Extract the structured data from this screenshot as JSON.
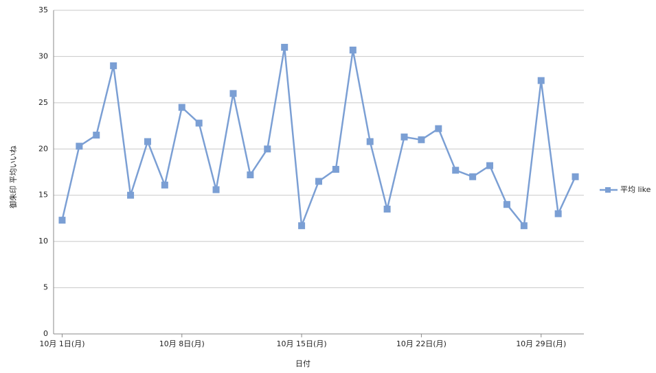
{
  "chart_data": {
    "type": "line",
    "x_label": "日付",
    "y_label": "御朱印 平均いいね",
    "categories": [
      "10月 1日(月)",
      null,
      null,
      null,
      null,
      null,
      null,
      "10月 8日(月)",
      null,
      null,
      null,
      null,
      null,
      null,
      "10月 15日(月)",
      null,
      null,
      null,
      null,
      null,
      null,
      "10月 22日(月)",
      null,
      null,
      null,
      null,
      null,
      null,
      "10月 29日(月)",
      null,
      null
    ],
    "series": [
      {
        "name": "平均 like",
        "color": "#7b9fd4",
        "values": [
          12.3,
          20.3,
          21.5,
          29.0,
          15.0,
          20.8,
          16.1,
          24.5,
          22.8,
          15.6,
          26.0,
          17.2,
          20.0,
          31.0,
          11.7,
          16.5,
          17.8,
          30.7,
          20.8,
          13.5,
          21.3,
          21.0,
          22.2,
          17.7,
          17.0,
          18.2,
          14.0,
          11.7,
          27.4,
          13.0,
          17.0
        ]
      }
    ],
    "ylim": [
      0,
      35
    ],
    "yticks": [
      0,
      5,
      10,
      15,
      20,
      25,
      30,
      35
    ],
    "grid": true,
    "legend": "right"
  }
}
